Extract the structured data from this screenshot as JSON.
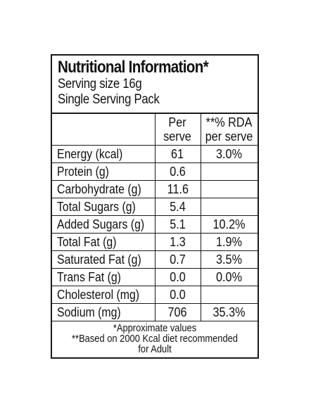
{
  "label": {
    "title": "Nutritional Information*",
    "serving_size": "Serving size 16g",
    "pack": "Single Serving Pack",
    "columns": {
      "per_serve_line1": "Per",
      "per_serve_line2": "serve",
      "rda_line1": "**% RDA",
      "rda_line2": "per serve"
    },
    "rows": [
      {
        "name": "Energy (kcal)",
        "per_serve": "61",
        "rda": "3.0%"
      },
      {
        "name": "Protein (g)",
        "per_serve": "0.6",
        "rda": ""
      },
      {
        "name": "Carbohydrate (g)",
        "per_serve": "11.6",
        "rda": ""
      },
      {
        "name": "Total Sugars (g)",
        "per_serve": "5.4",
        "rda": ""
      },
      {
        "name": "Added Sugars (g)",
        "per_serve": "5.1",
        "rda": "10.2%"
      },
      {
        "name": "Total Fat (g)",
        "per_serve": "1.3",
        "rda": "1.9%"
      },
      {
        "name": "Saturated Fat (g)",
        "per_serve": "0.7",
        "rda": "3.5%"
      },
      {
        "name": "Trans Fat (g)",
        "per_serve": "0.0",
        "rda": "0.0%"
      },
      {
        "name": "Cholesterol (mg)",
        "per_serve": "0.0",
        "rda": ""
      },
      {
        "name": "Sodium (mg)",
        "per_serve": "706",
        "rda": "35.3%"
      }
    ],
    "footnote_1": "*Approximate values",
    "footnote_2": "**Based on 2000 Kcal diet recommended",
    "footnote_3": "for Adult"
  }
}
